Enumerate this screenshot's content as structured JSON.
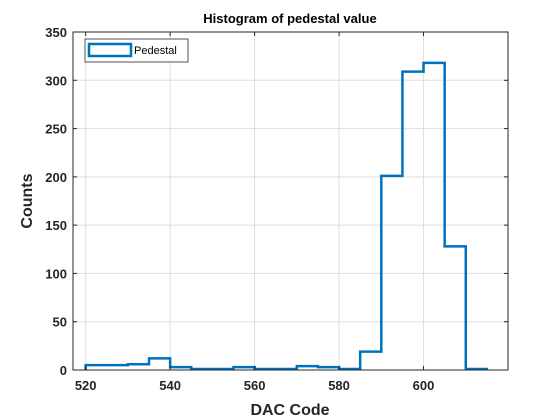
{
  "chart_data": {
    "type": "histogram",
    "title": "Histogram of pedestal value",
    "xlabel": "DAC Code",
    "ylabel": "Counts",
    "xlim": [
      517,
      620
    ],
    "ylim": [
      0,
      350
    ],
    "xticks": [
      520,
      540,
      560,
      580,
      600
    ],
    "yticks": [
      0,
      50,
      100,
      150,
      200,
      250,
      300,
      350
    ],
    "grid": true,
    "legend_position": "top-left",
    "color": "#0072BD",
    "series": [
      {
        "name": "Pedestal",
        "bin_edges": [
          520,
          525,
          530,
          535,
          540,
          545,
          550,
          555,
          560,
          565,
          570,
          575,
          580,
          585,
          590,
          595,
          600,
          605,
          610,
          615
        ],
        "counts": [
          5,
          5,
          6,
          12,
          3,
          1,
          1,
          3,
          1,
          1,
          4,
          3,
          1,
          19,
          201,
          309,
          318,
          128,
          1
        ]
      }
    ]
  }
}
